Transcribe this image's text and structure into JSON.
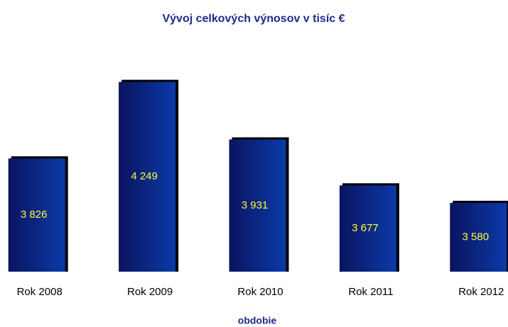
{
  "chart_data": {
    "type": "bar",
    "title": "Vývoj celkových výnosov v tisíc €",
    "x_label": "obdobie",
    "categories": [
      "Rok 2008",
      "Rok 2009",
      "Rok 2010",
      "Rok 2011",
      "Rok 2012"
    ],
    "values": [
      3826,
      4249,
      3931,
      3677,
      3580
    ],
    "value_labels": [
      "3 826",
      "4 249",
      "3 931",
      "3 677",
      "3 580"
    ],
    "color": "#0b3aa8",
    "ylim": [
      3200,
      4400
    ]
  }
}
